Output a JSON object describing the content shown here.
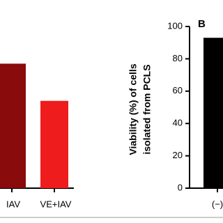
{
  "chart_data": [
    {
      "type": "bar",
      "categories": [
        "IAV",
        "VE+IAV"
      ],
      "values": [
        77,
        54
      ],
      "colors": [
        "#8a0b0b",
        "#ee1c1c"
      ],
      "ylim": [
        0,
        100
      ]
    },
    {
      "type": "bar",
      "panel_label": "B",
      "ylabel": [
        "Viability (%) of cells",
        "isolated from PCLS"
      ],
      "categories": [
        "(−)"
      ],
      "values": [
        93
      ],
      "colors": [
        "#000000"
      ],
      "ylim": [
        0,
        100
      ],
      "yticks": [
        0,
        20,
        40,
        60,
        80,
        100
      ]
    }
  ]
}
